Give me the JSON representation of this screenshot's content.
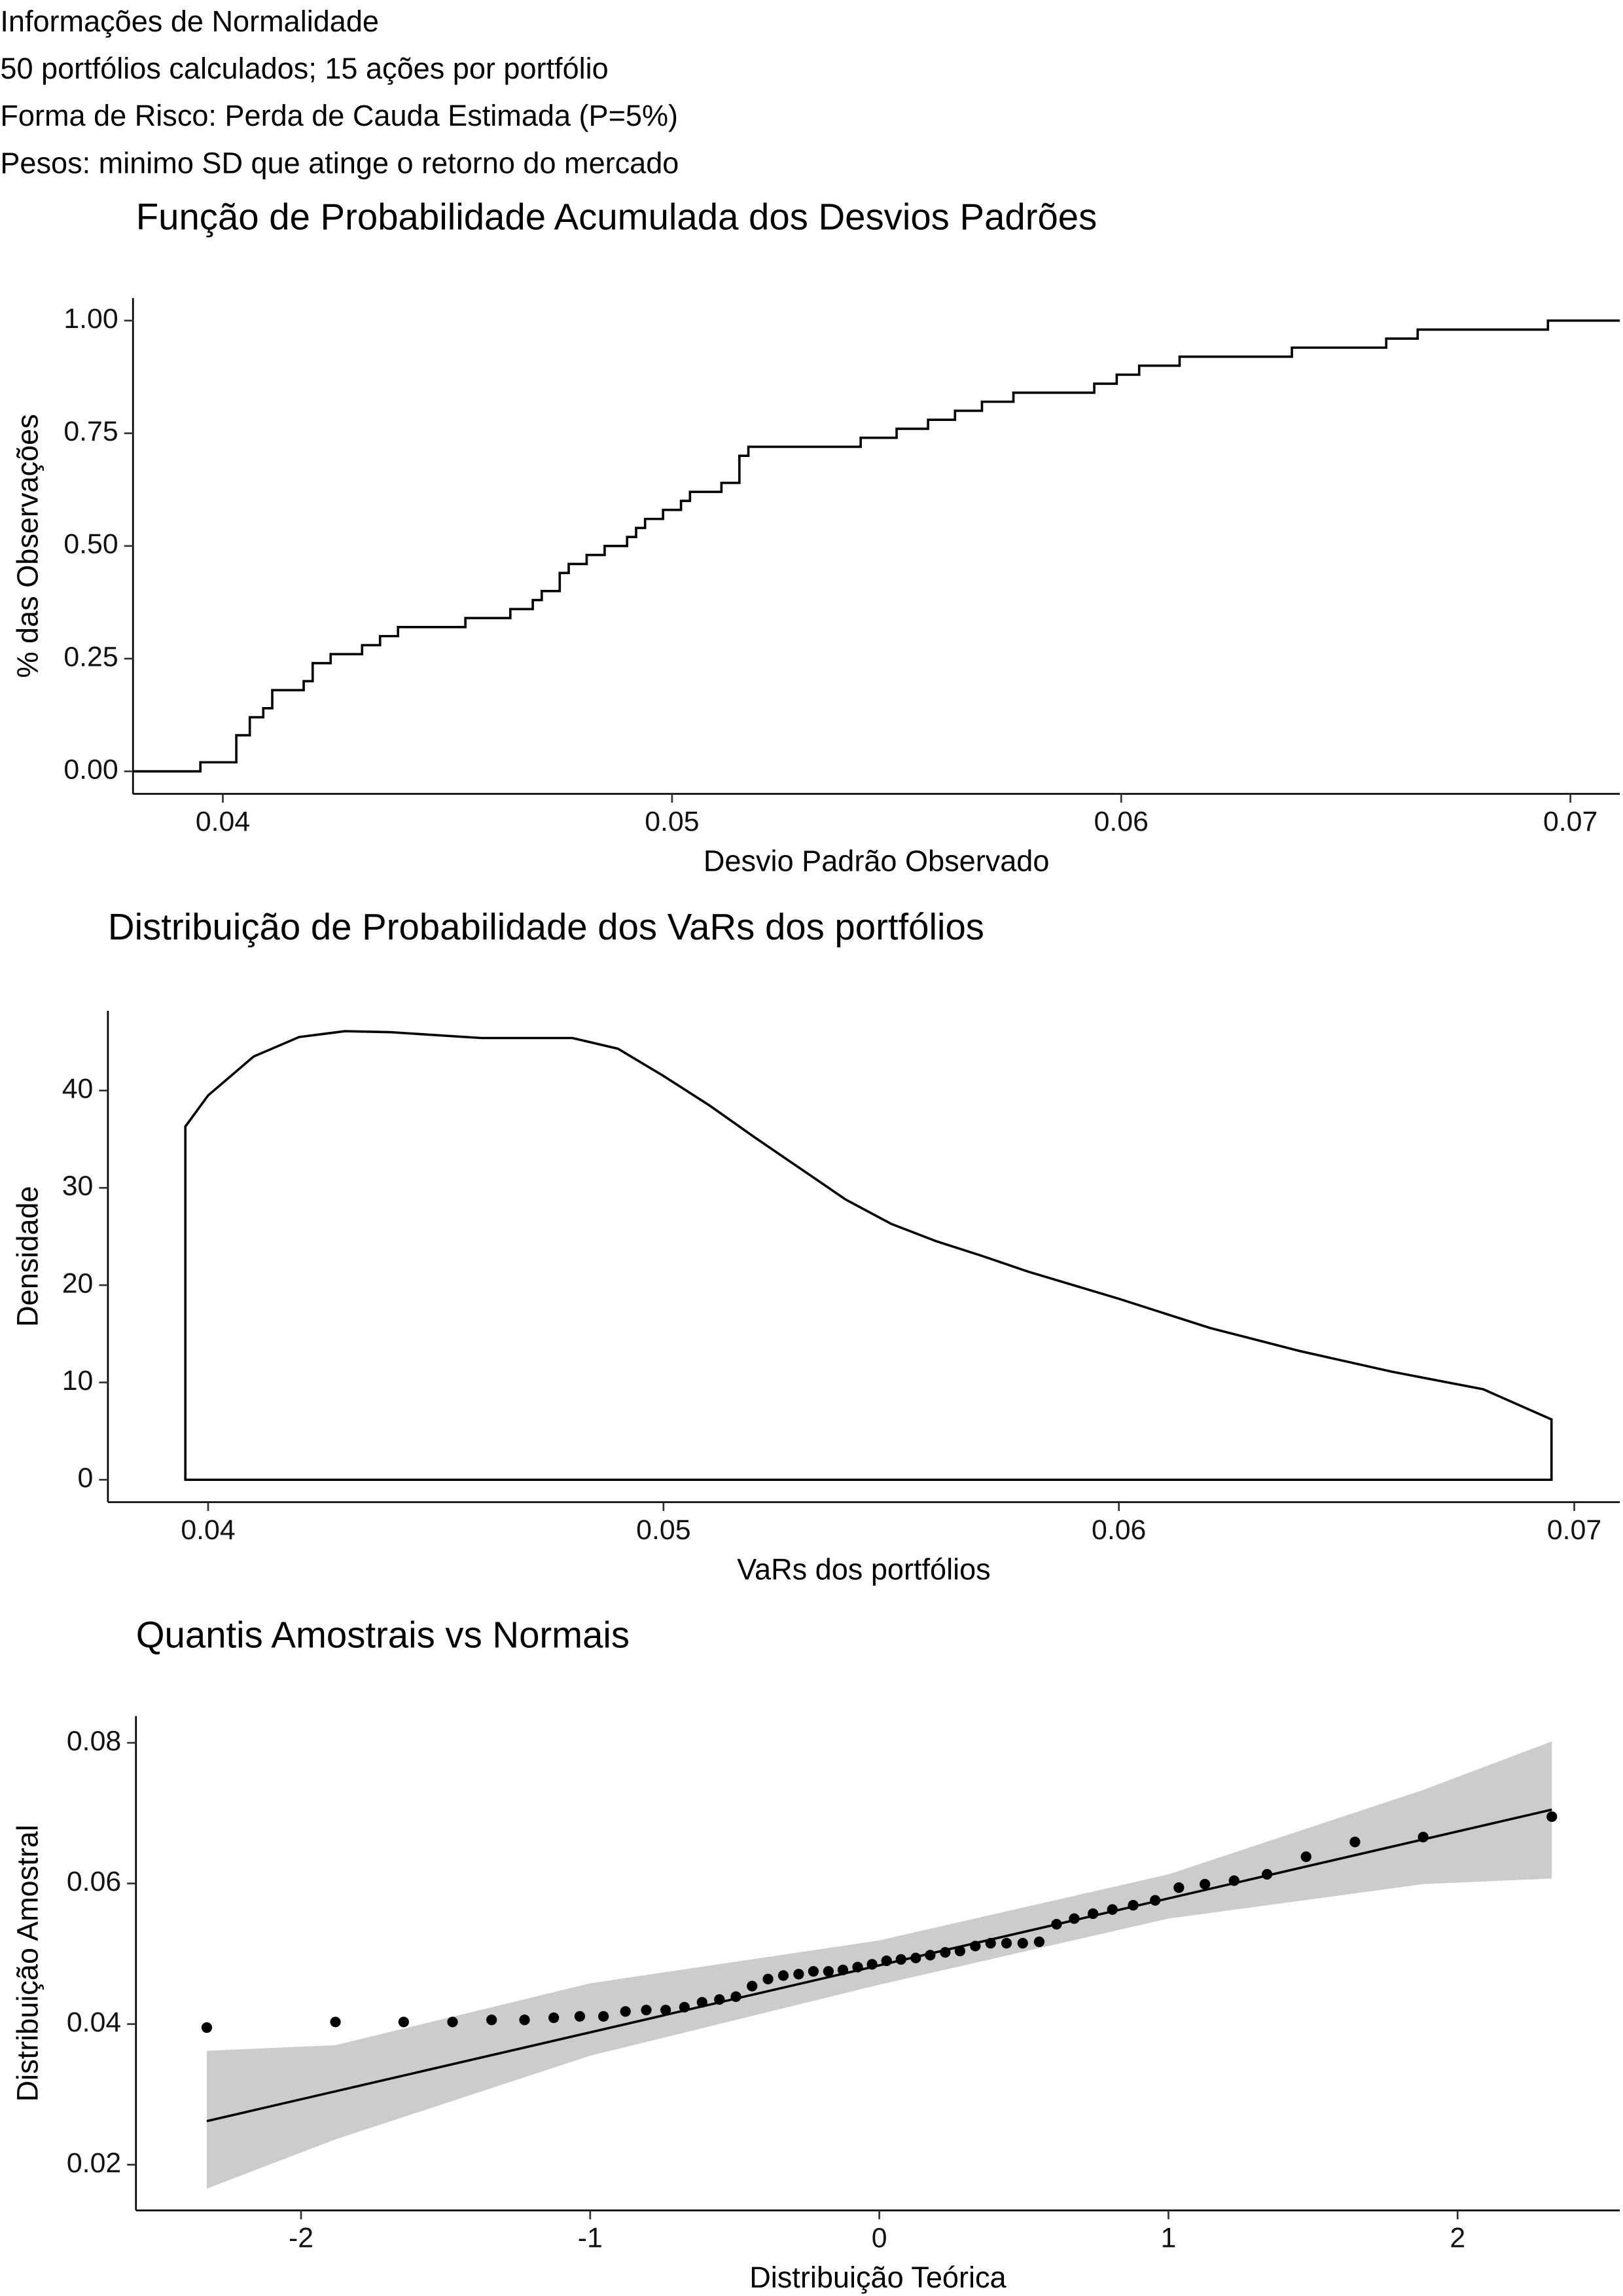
{
  "header": {
    "lines": [
      "Informações de Normalidade",
      "50 portfólios calculados; 15 ações por portfólio",
      "Forma de Risco: Perda de Cauda Estimada (P=5%)",
      "Pesos:  minimo SD que atinge o retorno do mercado"
    ]
  },
  "chart_data": [
    {
      "type": "ecdf",
      "title": "Função de Probabilidade Acumulada dos Desvios Padrões",
      "x_label": "Desvio Padrão Observado",
      "y_label": "% das Observações",
      "color": "#000000",
      "values": [
        0.0395,
        0.0403,
        0.0403,
        0.0403,
        0.0406,
        0.0406,
        0.0409,
        0.0411,
        0.0411,
        0.0418,
        0.042,
        0.042,
        0.0424,
        0.0431,
        0.0435,
        0.0439,
        0.0454,
        0.0464,
        0.0469,
        0.0471,
        0.0475,
        0.0475,
        0.0477,
        0.0481,
        0.0485,
        0.049,
        0.0492,
        0.0494,
        0.0498,
        0.0502,
        0.0504,
        0.0511,
        0.0515,
        0.0515,
        0.0515,
        0.0517,
        0.0542,
        0.055,
        0.0557,
        0.0563,
        0.0569,
        0.0576,
        0.0594,
        0.0599,
        0.0604,
        0.0613,
        0.0638,
        0.0659,
        0.0666,
        0.0695
      ],
      "xlim": [
        0.038,
        0.0711
      ],
      "xticks": [
        0.04,
        0.05,
        0.06,
        0.07
      ],
      "ylim": [
        -0.05,
        1.05
      ],
      "yticks": [
        {
          "value": 0,
          "label": "0.00"
        },
        {
          "value": 0.25,
          "label": "0.25"
        },
        {
          "value": 0.5,
          "label": "0.50"
        },
        {
          "value": 0.75,
          "label": "0.75"
        },
        {
          "value": 1,
          "label": "1.00"
        }
      ]
    },
    {
      "type": "density",
      "title": "Distribuição de Probabilidade dos VaRs dos portfólios",
      "x_label": "VaRs dos portfólios",
      "y_label": "Densidade",
      "color": "#000000",
      "x": [
        0.0395,
        0.04,
        0.041,
        0.042,
        0.043,
        0.044,
        0.045,
        0.046,
        0.047,
        0.048,
        0.049,
        0.05,
        0.051,
        0.052,
        0.053,
        0.054,
        0.055,
        0.056,
        0.057,
        0.058,
        0.059,
        0.06,
        0.062,
        0.064,
        0.066,
        0.068,
        0.0695
      ],
      "values": [
        36.3,
        39.5,
        43.5,
        45.5,
        46.1,
        46.0,
        45.7,
        45.4,
        45.4,
        45.4,
        44.3,
        41.5,
        38.5,
        35.2,
        32.0,
        28.8,
        26.3,
        24.5,
        23.0,
        21.4,
        20.0,
        18.6,
        15.6,
        13.2,
        11.1,
        9.3,
        6.2
      ],
      "xlim": [
        0.0378,
        0.071
      ],
      "xticks": [
        0.04,
        0.05,
        0.06,
        0.07
      ],
      "ylim": [
        -2.3,
        48.2
      ],
      "yticks": [
        0,
        10,
        20,
        30,
        40
      ]
    },
    {
      "type": "qq",
      "title": "Quantis Amostrais vs Normais",
      "x_label": "Distribuição Teórica",
      "y_label": "Distribuição Amostral",
      "color": "#000000",
      "band_color": "#cccccc",
      "x": [
        -2.326,
        -1.881,
        -1.645,
        -1.476,
        -1.341,
        -1.227,
        -1.126,
        -1.036,
        -0.954,
        -0.878,
        -0.806,
        -0.739,
        -0.674,
        -0.613,
        -0.553,
        -0.496,
        -0.44,
        -0.385,
        -0.332,
        -0.279,
        -0.228,
        -0.176,
        -0.126,
        -0.075,
        -0.025,
        0.025,
        0.075,
        0.126,
        0.176,
        0.228,
        0.279,
        0.332,
        0.385,
        0.44,
        0.496,
        0.553,
        0.613,
        0.674,
        0.739,
        0.806,
        0.878,
        0.954,
        1.036,
        1.126,
        1.227,
        1.341,
        1.476,
        1.645,
        1.881,
        2.326
      ],
      "values": [
        0.0395,
        0.0403,
        0.0403,
        0.0403,
        0.0406,
        0.0406,
        0.0409,
        0.0411,
        0.0411,
        0.0418,
        0.042,
        0.042,
        0.0424,
        0.0431,
        0.0435,
        0.0439,
        0.0454,
        0.0464,
        0.0469,
        0.0471,
        0.0475,
        0.0475,
        0.0477,
        0.0481,
        0.0485,
        0.049,
        0.0492,
        0.0494,
        0.0498,
        0.0502,
        0.0504,
        0.0511,
        0.0515,
        0.0515,
        0.0515,
        0.0517,
        0.0542,
        0.055,
        0.0557,
        0.0563,
        0.0569,
        0.0576,
        0.0594,
        0.0599,
        0.0604,
        0.0613,
        0.0638,
        0.0659,
        0.0666,
        0.0695
      ],
      "line": {
        "x": [
          -2.326,
          2.326
        ],
        "y": [
          0.0262,
          0.0705
        ]
      },
      "band": {
        "x": [
          -2.326,
          -1.881,
          -1,
          0,
          1,
          1.881,
          2.326
        ],
        "lower": [
          0.0166,
          0.0236,
          0.0355,
          0.0456,
          0.055,
          0.0599,
          0.0607
        ],
        "upper": [
          0.0362,
          0.037,
          0.0458,
          0.0519,
          0.0613,
          0.0733,
          0.0802
        ]
      },
      "xlim": [
        -2.571,
        2.561
      ],
      "xticks": [
        -2,
        -1,
        0,
        1,
        2
      ],
      "ylim": [
        0.0135,
        0.0838
      ],
      "yticks": [
        0.02,
        0.04,
        0.06,
        0.08
      ]
    }
  ]
}
